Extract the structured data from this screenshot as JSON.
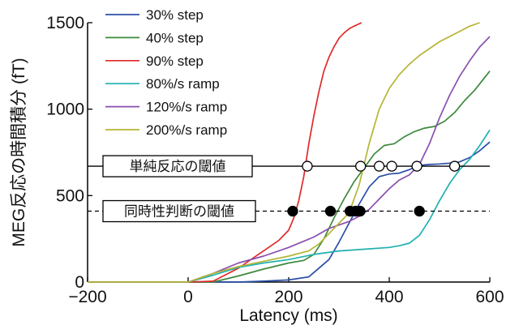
{
  "chart_data": {
    "type": "line",
    "title": "",
    "xlabel": "Latency (ms)",
    "ylabel": "MEG反応の時間積分 (fT)",
    "xlim": [
      -200,
      600
    ],
    "ylim": [
      0,
      1500
    ],
    "x_ticks": [
      -200,
      0,
      200,
      400,
      600
    ],
    "x_tick_labels": [
      "−200",
      "0",
      "200",
      "400",
      "600"
    ],
    "y_ticks": [
      0,
      500,
      1000,
      1500
    ],
    "y_tick_labels": [
      "0",
      "500",
      "1000",
      "1500"
    ],
    "grid": false,
    "legend_position": "top-left",
    "series": [
      {
        "name": "30% step",
        "color": "#2b4fa8",
        "points": [
          [
            -200,
            0
          ],
          [
            0,
            0
          ],
          [
            100,
            0
          ],
          [
            150,
            5
          ],
          [
            200,
            12
          ],
          [
            240,
            30
          ],
          [
            280,
            130
          ],
          [
            300,
            230
          ],
          [
            320,
            340
          ],
          [
            340,
            450
          ],
          [
            360,
            550
          ],
          [
            380,
            610
          ],
          [
            400,
            625
          ],
          [
            420,
            630
          ],
          [
            440,
            650
          ],
          [
            460,
            675
          ],
          [
            480,
            680
          ],
          [
            500,
            683
          ],
          [
            520,
            687
          ],
          [
            540,
            695
          ],
          [
            560,
            720
          ],
          [
            580,
            760
          ],
          [
            600,
            810
          ]
        ]
      },
      {
        "name": "40% step",
        "color": "#3d8a3d",
        "points": [
          [
            -200,
            0
          ],
          [
            0,
            0
          ],
          [
            50,
            0
          ],
          [
            100,
            35
          ],
          [
            150,
            75
          ],
          [
            200,
            110
          ],
          [
            230,
            125
          ],
          [
            250,
            160
          ],
          [
            270,
            250
          ],
          [
            290,
            370
          ],
          [
            310,
            480
          ],
          [
            330,
            580
          ],
          [
            350,
            660
          ],
          [
            370,
            740
          ],
          [
            390,
            790
          ],
          [
            410,
            800
          ],
          [
            430,
            840
          ],
          [
            450,
            870
          ],
          [
            470,
            890
          ],
          [
            490,
            900
          ],
          [
            510,
            930
          ],
          [
            530,
            980
          ],
          [
            550,
            1050
          ],
          [
            570,
            1110
          ],
          [
            600,
            1220
          ]
        ]
      },
      {
        "name": "90% step",
        "color": "#e02a2a",
        "points": [
          [
            -200,
            0
          ],
          [
            0,
            0
          ],
          [
            50,
            5
          ],
          [
            100,
            80
          ],
          [
            130,
            140
          ],
          [
            160,
            200
          ],
          [
            180,
            240
          ],
          [
            190,
            270
          ],
          [
            200,
            300
          ],
          [
            210,
            370
          ],
          [
            220,
            470
          ],
          [
            230,
            610
          ],
          [
            240,
            800
          ],
          [
            250,
            960
          ],
          [
            260,
            1100
          ],
          [
            270,
            1220
          ],
          [
            280,
            1300
          ],
          [
            290,
            1360
          ],
          [
            300,
            1410
          ],
          [
            310,
            1440
          ],
          [
            320,
            1465
          ],
          [
            330,
            1480
          ],
          [
            345,
            1500
          ]
        ]
      },
      {
        "name": "80%/s ramp",
        "color": "#20b0b0",
        "points": [
          [
            -200,
            0
          ],
          [
            0,
            0
          ],
          [
            50,
            40
          ],
          [
            100,
            85
          ],
          [
            150,
            110
          ],
          [
            200,
            130
          ],
          [
            250,
            160
          ],
          [
            300,
            180
          ],
          [
            350,
            190
          ],
          [
            400,
            200
          ],
          [
            420,
            210
          ],
          [
            440,
            225
          ],
          [
            460,
            270
          ],
          [
            480,
            360
          ],
          [
            500,
            470
          ],
          [
            520,
            570
          ],
          [
            540,
            650
          ],
          [
            560,
            710
          ],
          [
            580,
            790
          ],
          [
            600,
            880
          ]
        ]
      },
      {
        "name": "120%/s ramp",
        "color": "#8a4fb0",
        "points": [
          [
            -200,
            0
          ],
          [
            0,
            0
          ],
          [
            50,
            50
          ],
          [
            100,
            110
          ],
          [
            150,
            150
          ],
          [
            200,
            200
          ],
          [
            250,
            260
          ],
          [
            280,
            310
          ],
          [
            300,
            330
          ],
          [
            320,
            350
          ],
          [
            340,
            380
          ],
          [
            360,
            420
          ],
          [
            380,
            480
          ],
          [
            400,
            540
          ],
          [
            420,
            590
          ],
          [
            440,
            620
          ],
          [
            460,
            680
          ],
          [
            480,
            800
          ],
          [
            500,
            950
          ],
          [
            520,
            1080
          ],
          [
            540,
            1190
          ],
          [
            560,
            1280
          ],
          [
            580,
            1360
          ],
          [
            600,
            1420
          ]
        ]
      },
      {
        "name": "200%/s ramp",
        "color": "#b5b535",
        "points": [
          [
            -200,
            0
          ],
          [
            0,
            0
          ],
          [
            50,
            50
          ],
          [
            100,
            90
          ],
          [
            150,
            120
          ],
          [
            200,
            150
          ],
          [
            240,
            180
          ],
          [
            260,
            220
          ],
          [
            280,
            280
          ],
          [
            300,
            340
          ],
          [
            320,
            400
          ],
          [
            340,
            560
          ],
          [
            360,
            800
          ],
          [
            380,
            1000
          ],
          [
            400,
            1120
          ],
          [
            420,
            1200
          ],
          [
            440,
            1260
          ],
          [
            460,
            1310
          ],
          [
            480,
            1350
          ],
          [
            500,
            1390
          ],
          [
            520,
            1420
          ],
          [
            540,
            1450
          ],
          [
            560,
            1480
          ],
          [
            580,
            1500
          ]
        ]
      }
    ],
    "annotations": [
      {
        "label": "単純反応の閾値",
        "y": 670,
        "line_style": "solid",
        "marker": "open-circle",
        "marker_x": [
          237,
          343,
          380,
          405,
          455,
          530
        ]
      },
      {
        "label": "同時性判断の閾値",
        "y": 410,
        "line_style": "dashed",
        "marker": "filled-circle",
        "marker_x": [
          208,
          283,
          322,
          333,
          342,
          460
        ]
      }
    ]
  }
}
